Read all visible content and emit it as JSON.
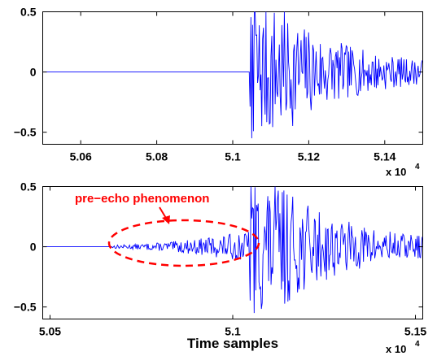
{
  "chart_data": [
    {
      "type": "line",
      "panel": "top",
      "xlim": [
        50500,
        51500
      ],
      "ylim": [
        -0.6,
        0.5
      ],
      "xticks": [
        50600,
        50800,
        51000,
        51200,
        51400
      ],
      "xtick_labels": [
        "5.06",
        "5.08",
        "5.1",
        "5.12",
        "5.14"
      ],
      "yticks": [
        -0.5,
        0,
        0.5
      ],
      "ytick_labels": [
        "−0.5",
        "0",
        "0.5"
      ],
      "x_exponent": {
        "base": "x 10",
        "power": "4"
      },
      "xlabel": "",
      "ylabel": "",
      "grid": false,
      "series": [
        {
          "color": "#0000ff",
          "onset_x": 51045,
          "silent_before_onset": true,
          "description_points": [
            {
              "x": 50500,
              "y": 0
            },
            {
              "x": 51045,
              "y": 0
            },
            {
              "x": 51055,
              "y": -0.55
            },
            {
              "x": 51060,
              "y": 0.5
            },
            {
              "x": 51075,
              "y": -0.45
            },
            {
              "x": 51150,
              "y": 0.45
            },
            {
              "x": 51200,
              "y": 0.3
            },
            {
              "x": 51300,
              "y": 0.15
            },
            {
              "x": 51400,
              "y": 0.08
            },
            {
              "x": 51500,
              "y": 0.05
            }
          ]
        }
      ]
    },
    {
      "type": "line",
      "panel": "bottom",
      "xlim": [
        50480,
        51520
      ],
      "ylim": [
        -0.6,
        0.5
      ],
      "xticks": [
        50500,
        51000,
        51500
      ],
      "xtick_labels": [
        "5.05",
        "5.1",
        "5.15"
      ],
      "yticks": [
        -0.5,
        0,
        0.5
      ],
      "ytick_labels": [
        "−0.5",
        "0",
        "0.5"
      ],
      "x_exponent": {
        "base": "x 10",
        "power": "4"
      },
      "xlabel": "Time samples",
      "ylabel": "",
      "grid": false,
      "annotations": [
        {
          "text": "pre−echo phenomenon",
          "color": "#ff0000",
          "type": "dashed-ellipse-with-arrow",
          "x_range": [
            50660,
            51040
          ]
        }
      ],
      "series": [
        {
          "color": "#0000ff",
          "pre_echo_start_x": 50670,
          "onset_x": 51045,
          "description_points": [
            {
              "x": 50480,
              "y": 0
            },
            {
              "x": 50670,
              "y": 0
            },
            {
              "x": 50800,
              "y": 0.03
            },
            {
              "x": 50900,
              "y": 0.05
            },
            {
              "x": 51000,
              "y": 0.1
            },
            {
              "x": 51045,
              "y": 0.15
            },
            {
              "x": 51060,
              "y": 0.5
            },
            {
              "x": 51065,
              "y": -0.55
            },
            {
              "x": 51150,
              "y": 0.45
            },
            {
              "x": 51200,
              "y": 0.3
            },
            {
              "x": 51300,
              "y": 0.15
            },
            {
              "x": 51400,
              "y": 0.08
            },
            {
              "x": 51520,
              "y": 0.05
            }
          ]
        }
      ]
    }
  ]
}
